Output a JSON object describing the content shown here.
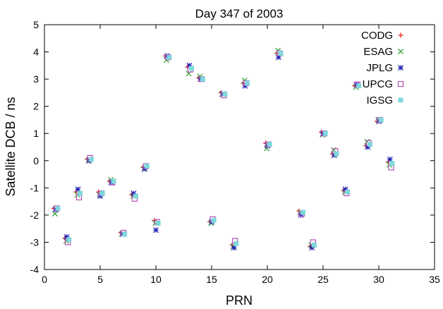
{
  "chart_data": {
    "type": "scatter",
    "title": "Day 347 of 2003",
    "xlabel": "PRN",
    "ylabel": "Satellite DCB / ns",
    "xlim": [
      0,
      35
    ],
    "ylim": [
      -4,
      5
    ],
    "xticks": [
      0,
      5,
      10,
      15,
      20,
      25,
      30,
      35
    ],
    "yticks": [
      -4,
      -3,
      -2,
      -1,
      0,
      1,
      2,
      3,
      4,
      5
    ],
    "grid": false,
    "legend_position": "top-right",
    "series": [
      {
        "name": "CODG",
        "marker": "plus",
        "color": "#e31a1c",
        "points": [
          [
            1,
            -1.75
          ],
          [
            2,
            -2.85
          ],
          [
            3,
            -1.15
          ],
          [
            4,
            0.05
          ],
          [
            5,
            -1.15
          ],
          [
            6,
            -0.75
          ],
          [
            7,
            -2.65
          ],
          [
            8,
            -1.25
          ],
          [
            9,
            -0.25
          ],
          [
            10,
            -2.2
          ],
          [
            11,
            3.85
          ],
          [
            13,
            3.45
          ],
          [
            14,
            3.05
          ],
          [
            15,
            -2.25
          ],
          [
            16,
            2.5
          ],
          [
            17,
            -3.1
          ],
          [
            18,
            2.85
          ],
          [
            20,
            0.65
          ],
          [
            21,
            3.95
          ],
          [
            23,
            -1.85
          ],
          [
            24,
            -3.15
          ],
          [
            25,
            1.05
          ],
          [
            26,
            0.25
          ],
          [
            27,
            -1.1
          ],
          [
            28,
            2.75
          ],
          [
            29,
            0.55
          ],
          [
            30,
            1.45
          ],
          [
            31,
            -0.05
          ]
        ]
      },
      {
        "name": "ESAG",
        "marker": "x",
        "color": "#2ca02c",
        "points": [
          [
            1,
            -1.95
          ],
          [
            2,
            -2.95
          ],
          [
            3,
            -1.25
          ],
          [
            4,
            0.0
          ],
          [
            5,
            -1.25
          ],
          [
            6,
            -0.7
          ],
          [
            7,
            -2.7
          ],
          [
            8,
            -1.3
          ],
          [
            9,
            -0.3
          ],
          [
            10,
            -2.3
          ],
          [
            11,
            3.7
          ],
          [
            13,
            3.2
          ],
          [
            14,
            3.1
          ],
          [
            15,
            -2.3
          ],
          [
            16,
            2.45
          ],
          [
            17,
            -3.15
          ],
          [
            18,
            2.95
          ],
          [
            20,
            0.45
          ],
          [
            21,
            4.05
          ],
          [
            23,
            -1.9
          ],
          [
            24,
            -3.1
          ],
          [
            25,
            0.95
          ],
          [
            26,
            0.4
          ],
          [
            27,
            -1.15
          ],
          [
            28,
            2.7
          ],
          [
            29,
            0.7
          ],
          [
            30,
            1.5
          ],
          [
            31,
            -0.15
          ]
        ]
      },
      {
        "name": "JPLG",
        "marker": "star",
        "color": "#1f1fb4",
        "points": [
          [
            1,
            -1.8
          ],
          [
            2,
            -2.8
          ],
          [
            3,
            -1.05
          ],
          [
            4,
            0.0
          ],
          [
            5,
            -1.3
          ],
          [
            6,
            -0.8
          ],
          [
            7,
            -2.7
          ],
          [
            8,
            -1.2
          ],
          [
            9,
            -0.3
          ],
          [
            10,
            -2.55
          ],
          [
            11,
            3.85
          ],
          [
            13,
            3.5
          ],
          [
            14,
            3.0
          ],
          [
            15,
            -2.25
          ],
          [
            16,
            2.45
          ],
          [
            17,
            -3.2
          ],
          [
            18,
            2.75
          ],
          [
            20,
            0.55
          ],
          [
            21,
            3.8
          ],
          [
            23,
            -2.0
          ],
          [
            24,
            -3.2
          ],
          [
            25,
            1.0
          ],
          [
            26,
            0.2
          ],
          [
            27,
            -1.05
          ],
          [
            28,
            2.8
          ],
          [
            29,
            0.5
          ],
          [
            30,
            1.45
          ],
          [
            31,
            0.05
          ]
        ]
      },
      {
        "name": "UPCG",
        "marker": "square-open",
        "color": "#b24fb4",
        "points": [
          [
            1,
            -1.75
          ],
          [
            2,
            -3.0
          ],
          [
            3,
            -1.35
          ],
          [
            4,
            0.1
          ],
          [
            5,
            -1.2
          ],
          [
            6,
            -0.8
          ],
          [
            7,
            -2.65
          ],
          [
            8,
            -1.4
          ],
          [
            9,
            -0.2
          ],
          [
            10,
            -2.25
          ],
          [
            11,
            3.8
          ],
          [
            13,
            3.35
          ],
          [
            14,
            3.0
          ],
          [
            15,
            -2.15
          ],
          [
            16,
            2.4
          ],
          [
            17,
            -2.95
          ],
          [
            18,
            2.85
          ],
          [
            20,
            0.6
          ],
          [
            21,
            3.95
          ],
          [
            23,
            -1.95
          ],
          [
            24,
            -3.0
          ],
          [
            25,
            1.0
          ],
          [
            26,
            0.35
          ],
          [
            27,
            -1.2
          ],
          [
            28,
            2.8
          ],
          [
            29,
            0.65
          ],
          [
            30,
            1.5
          ],
          [
            31,
            -0.25
          ]
        ]
      },
      {
        "name": "IGSG",
        "marker": "square-filled",
        "color": "#7fd8dc",
        "points": [
          [
            1,
            -1.75
          ],
          [
            2,
            -2.9
          ],
          [
            3,
            -1.2
          ],
          [
            4,
            0.05
          ],
          [
            5,
            -1.2
          ],
          [
            6,
            -0.75
          ],
          [
            7,
            -2.7
          ],
          [
            8,
            -1.3
          ],
          [
            9,
            -0.2
          ],
          [
            10,
            -2.3
          ],
          [
            11,
            3.8
          ],
          [
            13,
            3.4
          ],
          [
            14,
            3.0
          ],
          [
            15,
            -2.2
          ],
          [
            16,
            2.45
          ],
          [
            17,
            -3.05
          ],
          [
            18,
            2.85
          ],
          [
            20,
            0.6
          ],
          [
            21,
            3.95
          ],
          [
            23,
            -1.9
          ],
          [
            24,
            -3.1
          ],
          [
            25,
            1.0
          ],
          [
            26,
            0.25
          ],
          [
            27,
            -1.15
          ],
          [
            28,
            2.75
          ],
          [
            29,
            0.6
          ],
          [
            30,
            1.5
          ],
          [
            31,
            -0.1
          ]
        ]
      }
    ]
  }
}
